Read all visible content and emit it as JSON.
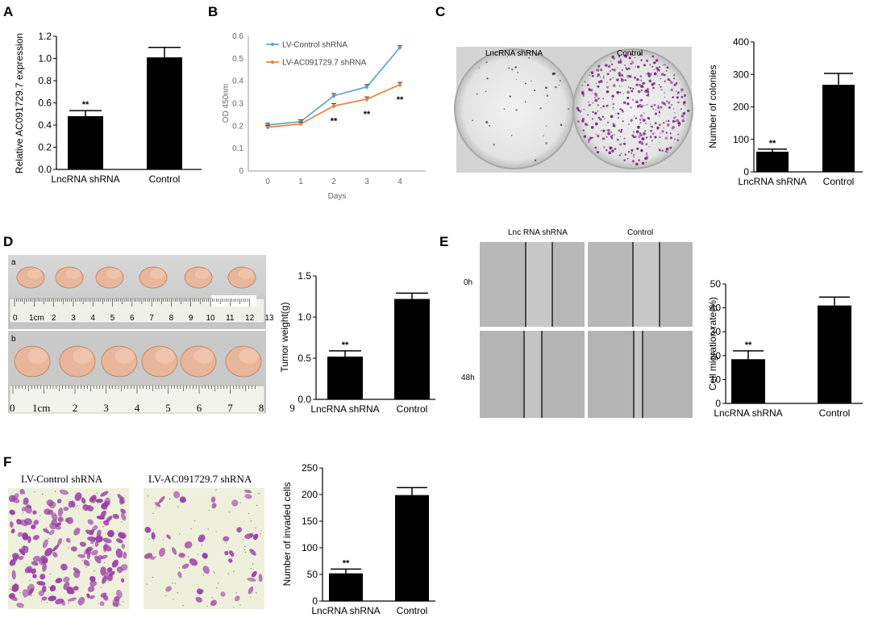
{
  "panels": {
    "A": "A",
    "B": "B",
    "C": "C",
    "D": "D",
    "E": "E",
    "F": "F"
  },
  "photo_labels": {
    "C": {
      "left": "LncRNA shRNA",
      "right": "Control"
    },
    "D": {
      "row_a": "a",
      "row_b": "b",
      "ruler_a_cm": "1cm",
      "ruler_b_cm": "1cm",
      "ruler_a_numbers": [
        "2",
        "3",
        "4",
        "5",
        "6",
        "7",
        "8",
        "9",
        "10",
        "11",
        "12",
        "13"
      ],
      "ruler_b_numbers": [
        "2",
        "3",
        "4",
        "5",
        "6",
        "7",
        "8",
        "9"
      ],
      "ruler_zero": "0"
    },
    "E": {
      "col_left": "Lnc RNA shRNA",
      "col_right": "Control",
      "row_top": "0h",
      "row_bottom": "48h"
    },
    "F": {
      "left": "LV-Control shRNA",
      "right": "LV-AC091729.7 shRNA"
    }
  },
  "colors": {
    "bar": "#000000",
    "line_control": "#5b9bd5",
    "line_knockdown": "#ed7d31",
    "axis_light": "#999999",
    "colony_stain": "#7a2a7a",
    "cell_stain": "#9b3fa6",
    "tumor": "#e8b69a"
  },
  "chart_data": [
    {
      "id": "A",
      "type": "bar",
      "categories": [
        "LncRNA shRNA",
        "Control"
      ],
      "values": [
        0.48,
        1.01
      ],
      "errors": [
        0.05,
        0.09
      ],
      "annotations": [
        "**",
        ""
      ],
      "ylabel": "Relative AC091729.7 expression",
      "ylim": [
        0,
        1.2
      ],
      "yticks": [
        "0.0",
        "0.2",
        "0.4",
        "0.6",
        "0.8",
        "1.0",
        "1.2"
      ]
    },
    {
      "id": "B",
      "type": "line",
      "x": [
        0,
        1,
        2,
        3,
        4
      ],
      "xticks": [
        "0",
        "1",
        "2",
        "3",
        "4"
      ],
      "xlabel": "Days",
      "ylabel": "OD 450nm",
      "ylim": [
        0,
        0.6
      ],
      "yticks": [
        "0",
        "0.1",
        "0.2",
        "0.3",
        "0.4",
        "0.5",
        "0.6"
      ],
      "legend_position": "top-left",
      "series": [
        {
          "name": "LV-Control shRNA",
          "color_key": "line_control",
          "values": [
            0.205,
            0.22,
            0.335,
            0.375,
            0.55
          ],
          "errors": [
            0.008,
            0.008,
            0.01,
            0.01,
            0.008
          ]
        },
        {
          "name": "LV-AC091729.7 shRNA",
          "color_key": "line_knockdown",
          "values": [
            0.195,
            0.21,
            0.29,
            0.32,
            0.385
          ],
          "errors": [
            0.008,
            0.008,
            0.01,
            0.01,
            0.01
          ]
        }
      ],
      "annotations": [
        {
          "x": 2,
          "text": "**"
        },
        {
          "x": 3,
          "text": "**"
        },
        {
          "x": 4,
          "text": "**"
        }
      ]
    },
    {
      "id": "C",
      "type": "bar",
      "categories": [
        "LncRNA shRNA",
        "Control"
      ],
      "values": [
        62,
        268
      ],
      "errors": [
        8,
        35
      ],
      "annotations": [
        "**",
        ""
      ],
      "ylabel": "Number of colonies",
      "ylim": [
        0,
        400
      ],
      "yticks": [
        "0",
        "100",
        "200",
        "300",
        "400"
      ]
    },
    {
      "id": "D",
      "type": "bar",
      "categories": [
        "LncRNA shRNA",
        "Control"
      ],
      "values": [
        0.52,
        1.22
      ],
      "errors": [
        0.07,
        0.07
      ],
      "annotations": [
        "**",
        ""
      ],
      "ylabel": "Tumor weight(g)",
      "ylim": [
        0,
        1.5
      ],
      "yticks": [
        "0.0",
        "0.5",
        "1.0",
        "1.5"
      ]
    },
    {
      "id": "E",
      "type": "bar",
      "categories": [
        "LncRNA shRNA",
        "Control"
      ],
      "values": [
        18.5,
        41
      ],
      "errors": [
        3.5,
        3.5
      ],
      "annotations": [
        "**",
        ""
      ],
      "ylabel": "Cell migration rate(%)",
      "ylim": [
        0,
        50
      ],
      "yticks": [
        "0",
        "10",
        "20",
        "30",
        "40",
        "50"
      ]
    },
    {
      "id": "F",
      "type": "bar",
      "categories": [
        "LncRNA shRNA",
        "Control"
      ],
      "values": [
        52,
        199
      ],
      "errors": [
        8,
        14
      ],
      "annotations": [
        "**",
        ""
      ],
      "ylabel": "Number of invaded cells",
      "ylim": [
        0,
        250
      ],
      "yticks": [
        "0",
        "50",
        "100",
        "150",
        "200",
        "250"
      ]
    }
  ]
}
